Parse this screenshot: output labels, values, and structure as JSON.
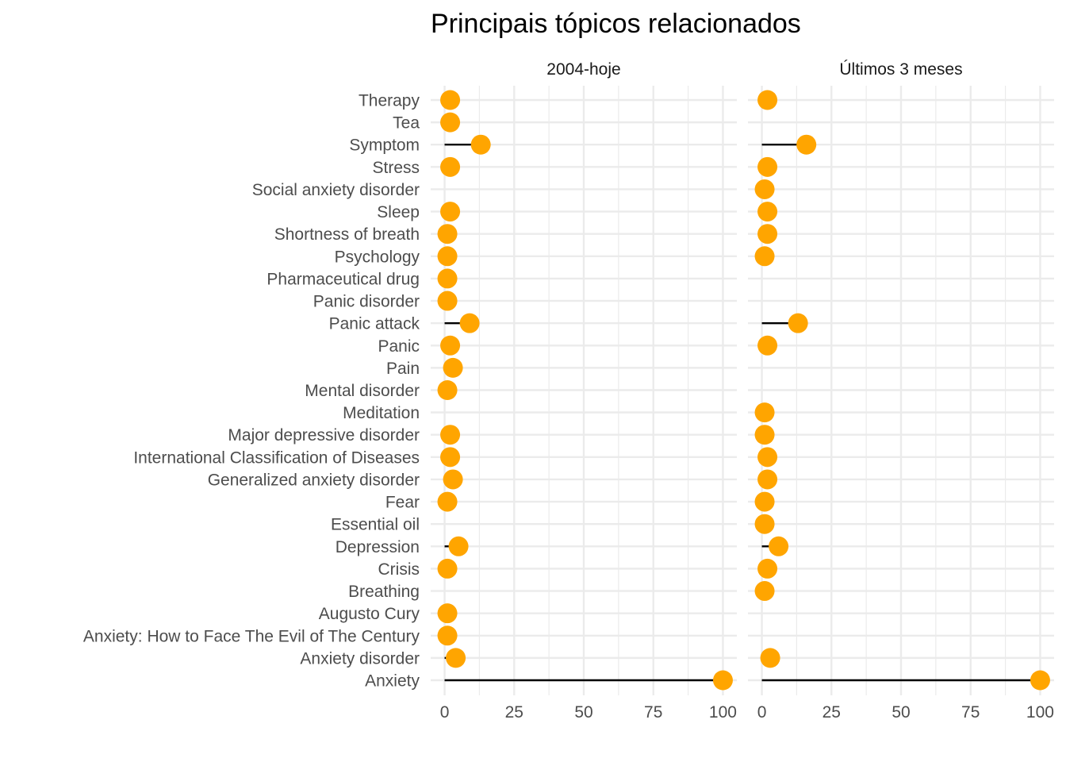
{
  "chart_data": {
    "type": "lollipop",
    "title": "Principais tópicos relacionados",
    "xlim": [
      0,
      100
    ],
    "x_ticks": [
      "0",
      "25",
      "50",
      "75",
      "100"
    ],
    "categories": [
      "Therapy",
      "Tea",
      "Symptom",
      "Stress",
      "Social anxiety disorder",
      "Sleep",
      "Shortness of breath",
      "Psychology",
      "Pharmaceutical drug",
      "Panic disorder",
      "Panic attack",
      "Panic",
      "Pain",
      "Mental disorder",
      "Meditation",
      "Major depressive disorder",
      "International Classification of Diseases",
      "Generalized anxiety disorder",
      "Fear",
      "Essential oil",
      "Depression",
      "Crisis",
      "Breathing",
      "Augusto Cury",
      "Anxiety: How to Face The Evil of The Century",
      "Anxiety disorder",
      "Anxiety"
    ],
    "panels": [
      {
        "name": "2004-hoje",
        "values": [
          2,
          2,
          13,
          2,
          null,
          2,
          1,
          1,
          1,
          1,
          9,
          2,
          3,
          1,
          null,
          2,
          2,
          3,
          1,
          null,
          5,
          1,
          null,
          1,
          1,
          4,
          100
        ]
      },
      {
        "name": "Últimos 3 meses",
        "values": [
          2,
          null,
          16,
          2,
          1,
          2,
          2,
          1,
          null,
          null,
          13,
          2,
          null,
          null,
          1,
          1,
          2,
          2,
          1,
          1,
          6,
          2,
          1,
          null,
          null,
          3,
          100
        ]
      }
    ],
    "point_color": "#FFA500",
    "stem_color": "#000000",
    "grid": true
  }
}
